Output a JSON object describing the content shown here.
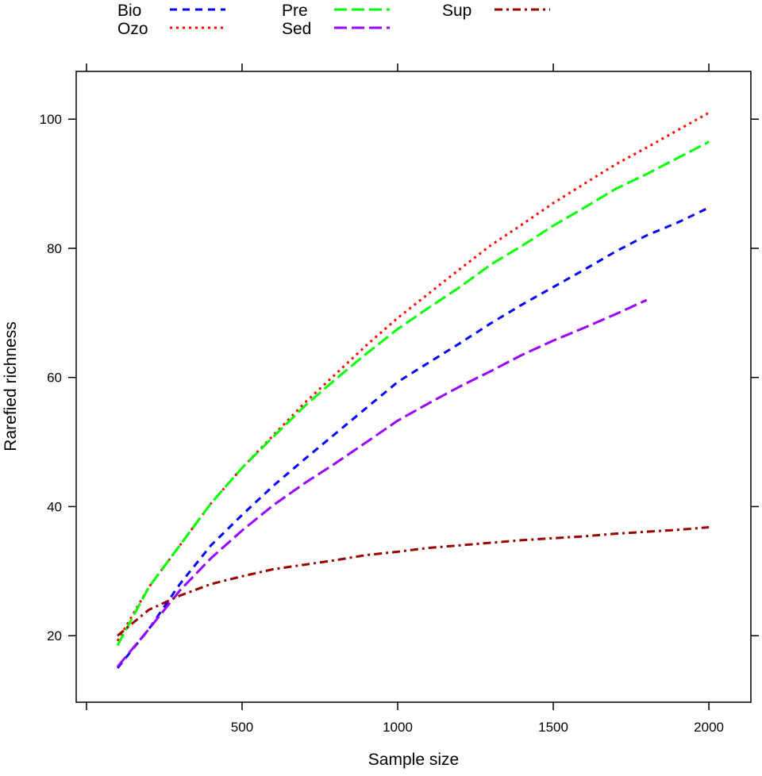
{
  "chart_data": {
    "type": "line",
    "title": "",
    "xlabel": "Sample size",
    "ylabel": "Rarefied richness",
    "xlim": [
      -33,
      2135
    ],
    "ylim": [
      9.7,
      107.4
    ],
    "x_ticks": [
      0,
      500,
      1000,
      1500,
      2000
    ],
    "x_tick_labels": [
      "",
      "500",
      "1000",
      "1500",
      "2000"
    ],
    "y_ticks": [
      20,
      40,
      60,
      80,
      100
    ],
    "y_tick_labels": [
      "20",
      "40",
      "60",
      "80",
      "100"
    ],
    "grid": false,
    "legend_position": "top",
    "x": [
      100,
      200,
      300,
      400,
      500,
      600,
      700,
      800,
      900,
      1000,
      1100,
      1200,
      1300,
      1400,
      1500,
      1600,
      1700,
      1800,
      1900,
      2000
    ],
    "series": [
      {
        "name": "Bio",
        "color": "#0000ff",
        "dash": "dashed",
        "values": [
          15,
          21,
          28,
          34,
          38.7,
          43.2,
          47.3,
          51.3,
          55.3,
          59.3,
          62.3,
          65.3,
          68.4,
          71.3,
          74,
          76.7,
          79.5,
          82,
          84,
          86.3
        ]
      },
      {
        "name": "Ozo",
        "color": "#ff0000",
        "dash": "dotted",
        "values": [
          19.2,
          27.5,
          34,
          40.5,
          46,
          51,
          56,
          60.5,
          65,
          69.2,
          73,
          76.8,
          80.5,
          83.7,
          87,
          90,
          93,
          95.6,
          98.3,
          101
        ]
      },
      {
        "name": "Pre",
        "color": "#00ff00",
        "dash": "longdash",
        "values": [
          18.5,
          27.5,
          34,
          40.5,
          46,
          50.8,
          55.5,
          59.7,
          63.7,
          67.5,
          70.8,
          74,
          77.5,
          80.4,
          83.5,
          86.3,
          89.2,
          91.5,
          94,
          96.5
        ]
      },
      {
        "name": "Sed",
        "color": "#9900ff",
        "dash": "longdash",
        "values": [
          15.2,
          21,
          27,
          32,
          36.3,
          40.2,
          43.6,
          46.7,
          50,
          53.3,
          56,
          58.6,
          61,
          63.5,
          65.7,
          67.7,
          69.8,
          72,
          null,
          null
        ]
      },
      {
        "name": "Sup",
        "color": "#990000",
        "dash": "dotdash",
        "values": [
          20,
          24,
          26.2,
          28,
          29.2,
          30.3,
          31,
          31.7,
          32.5,
          33,
          33.6,
          34,
          34.4,
          34.8,
          35.1,
          35.4,
          35.8,
          36.1,
          36.4,
          36.8
        ]
      }
    ]
  }
}
